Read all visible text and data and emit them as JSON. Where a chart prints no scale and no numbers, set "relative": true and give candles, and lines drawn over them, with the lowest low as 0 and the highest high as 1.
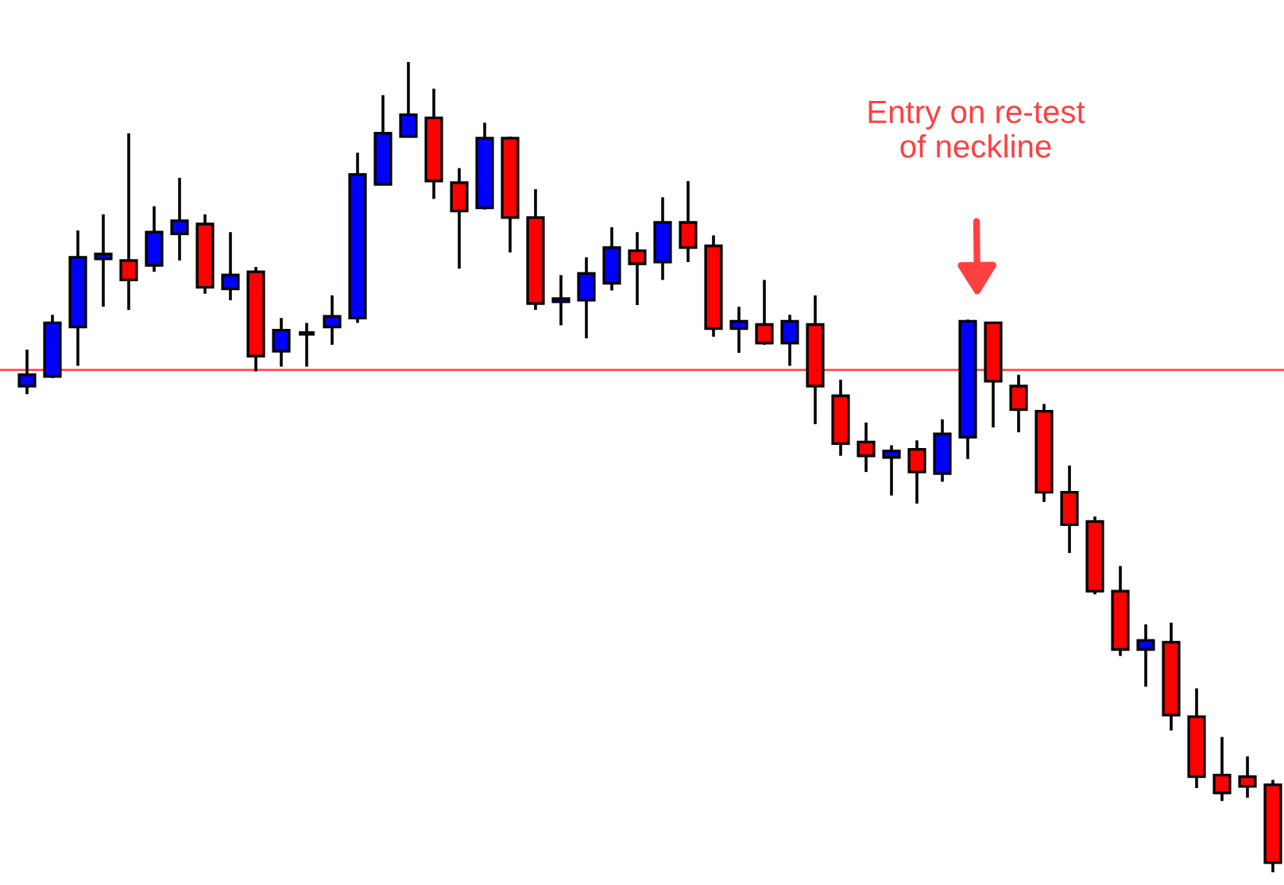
{
  "chart_data": {
    "type": "candlestick",
    "relative": true,
    "categories": [
      null,
      null,
      null,
      null,
      null,
      null,
      null,
      null,
      null,
      null,
      null,
      null,
      null,
      null,
      null,
      null,
      null,
      null,
      null,
      null,
      null,
      null,
      null,
      null,
      null,
      null,
      null,
      null,
      null,
      null,
      null,
      null,
      null,
      null,
      null,
      null,
      null,
      null,
      null,
      null,
      null,
      null,
      null,
      null,
      null,
      null,
      null,
      null,
      null,
      null
    ],
    "ohlc": [
      [
        0.6,
        0.645,
        0.59,
        0.614
      ],
      [
        0.612,
        0.688,
        0.61,
        0.678
      ],
      [
        0.673,
        0.792,
        0.625,
        0.759
      ],
      [
        0.757,
        0.812,
        0.698,
        0.763
      ],
      [
        0.755,
        0.912,
        0.694,
        0.731
      ],
      [
        0.749,
        0.822,
        0.741,
        0.79
      ],
      [
        0.788,
        0.857,
        0.755,
        0.804
      ],
      [
        0.8,
        0.812,
        0.714,
        0.722
      ],
      [
        0.72,
        0.79,
        0.706,
        0.737
      ],
      [
        0.741,
        0.747,
        0.618,
        0.637
      ],
      [
        0.643,
        0.684,
        0.624,
        0.669
      ],
      [
        0.665,
        0.678,
        0.624,
        0.665
      ],
      [
        0.673,
        0.712,
        0.651,
        0.686
      ],
      [
        0.684,
        0.888,
        0.678,
        0.861
      ],
      [
        0.849,
        0.959,
        0.849,
        0.912
      ],
      [
        0.908,
        1.0,
        0.908,
        0.935
      ],
      [
        0.931,
        0.967,
        0.831,
        0.853
      ],
      [
        0.851,
        0.869,
        0.745,
        0.816
      ],
      [
        0.82,
        0.925,
        0.818,
        0.906
      ],
      [
        0.906,
        0.908,
        0.765,
        0.808
      ],
      [
        0.808,
        0.843,
        0.694,
        0.702
      ],
      [
        0.704,
        0.737,
        0.675,
        0.708
      ],
      [
        0.706,
        0.759,
        0.659,
        0.739
      ],
      [
        0.727,
        0.796,
        0.718,
        0.771
      ],
      [
        0.767,
        0.79,
        0.7,
        0.751
      ],
      [
        0.753,
        0.833,
        0.731,
        0.802
      ],
      [
        0.802,
        0.853,
        0.753,
        0.771
      ],
      [
        0.773,
        0.786,
        0.661,
        0.671
      ],
      [
        0.671,
        0.698,
        0.641,
        0.68
      ],
      [
        0.676,
        0.731,
        0.651,
        0.653
      ],
      [
        0.653,
        0.688,
        0.625,
        0.68
      ],
      [
        0.676,
        0.712,
        0.553,
        0.6
      ],
      [
        0.588,
        0.608,
        0.514,
        0.529
      ],
      [
        0.531,
        0.555,
        0.494,
        0.514
      ],
      [
        0.512,
        0.527,
        0.465,
        0.52
      ],
      [
        0.522,
        0.533,
        0.455,
        0.494
      ],
      [
        0.492,
        0.559,
        0.482,
        0.541
      ],
      [
        0.537,
        0.682,
        0.51,
        0.68
      ],
      [
        0.678,
        0.678,
        0.549,
        0.606
      ],
      [
        0.6,
        0.614,
        0.543,
        0.571
      ],
      [
        0.569,
        0.578,
        0.457,
        0.469
      ],
      [
        0.469,
        0.502,
        0.394,
        0.429
      ],
      [
        0.433,
        0.439,
        0.343,
        0.347
      ],
      [
        0.347,
        0.378,
        0.267,
        0.275
      ],
      [
        0.275,
        0.306,
        0.229,
        0.286
      ],
      [
        0.284,
        0.308,
        0.175,
        0.194
      ],
      [
        0.192,
        0.227,
        0.104,
        0.118
      ],
      [
        0.12,
        0.167,
        0.088,
        0.098
      ],
      [
        0.118,
        0.143,
        0.092,
        0.106
      ],
      [
        0.108,
        0.114,
        0.0,
        0.012
      ]
    ],
    "colors": [
      "#0000ff",
      "#0000ff",
      "#0000ff",
      "#0000ff",
      "#ff0000",
      "#0000ff",
      "#0000ff",
      "#ff0000",
      "#0000ff",
      "#ff0000",
      "#0000ff",
      "#000000",
      "#0000ff",
      "#0000ff",
      "#0000ff",
      "#0000ff",
      "#ff0000",
      "#ff0000",
      "#0000ff",
      "#ff0000",
      "#ff0000",
      "#0000ff",
      "#0000ff",
      "#0000ff",
      "#ff0000",
      "#0000ff",
      "#ff0000",
      "#ff0000",
      "#0000ff",
      "#ff0000",
      "#0000ff",
      "#ff0000",
      "#ff0000",
      "#ff0000",
      "#0000ff",
      "#ff0000",
      "#0000ff",
      "#0000ff",
      "#ff0000",
      "#ff0000",
      "#ff0000",
      "#ff0000",
      "#ff0000",
      "#ff0000",
      "#0000ff",
      "#ff0000",
      "#ff0000",
      "#ff0000",
      "#ff0000",
      "#ff0000"
    ],
    "ref_lines": [
      {
        "axis": "y",
        "value": 0.62,
        "color": "#ff5050"
      }
    ],
    "annotations": [
      "Entry on re-test\nof neckline"
    ]
  }
}
